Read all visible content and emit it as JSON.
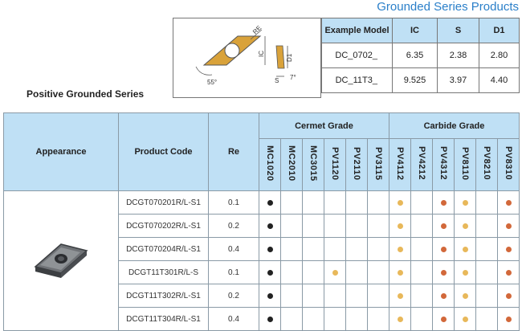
{
  "page_title": "Grounded Series Products",
  "series_label": "Positive Grounded Series",
  "diagram": {
    "label_re": "RE",
    "label_ic": "IC",
    "label_d1": "D1",
    "label_s": "S",
    "angle_55": "55°",
    "angle_7": "7°"
  },
  "spec_table": {
    "headers": [
      "Example Model",
      "IC",
      "S",
      "D1"
    ],
    "rows": [
      [
        "DC_0702_",
        "6.35",
        "2.38",
        "2.80"
      ],
      [
        "DC_11T3_",
        "9.525",
        "3.97",
        "4.40"
      ]
    ]
  },
  "grade_table": {
    "head_appearance": "Appearance",
    "head_code": "Product Code",
    "head_re": "Re",
    "group_cermet": "Cermet Grade",
    "group_carbide": "Carbide Grade",
    "cermet_grades": [
      "MC1020",
      "MC2010",
      "MC3015",
      "PV1120",
      "PV2110",
      "PV3115"
    ],
    "carbide_grades": [
      "PV4112",
      "PV4212",
      "PV4312",
      "PV8110",
      "PV8210",
      "PV8310"
    ],
    "rows": [
      {
        "code": "DCGT070201R/L-S1",
        "re": "0.1",
        "marks": [
          "k",
          "",
          "",
          "",
          "",
          "",
          "y",
          "",
          "o",
          "y",
          "",
          "o"
        ]
      },
      {
        "code": "DCGT070202R/L-S1",
        "re": "0.2",
        "marks": [
          "k",
          "",
          "",
          "",
          "",
          "",
          "y",
          "",
          "o",
          "y",
          "",
          "o"
        ]
      },
      {
        "code": "DCGT070204R/L-S1",
        "re": "0.4",
        "marks": [
          "k",
          "",
          "",
          "",
          "",
          "",
          "y",
          "",
          "o",
          "y",
          "",
          "o"
        ]
      },
      {
        "code": "DCGT11T301R/L-S",
        "re": "0.1",
        "marks": [
          "k",
          "",
          "",
          "y",
          "",
          "",
          "y",
          "",
          "o",
          "y",
          "",
          "o"
        ]
      },
      {
        "code": "DCGT11T302R/L-S1",
        "re": "0.2",
        "marks": [
          "k",
          "",
          "",
          "",
          "",
          "",
          "y",
          "",
          "o",
          "y",
          "",
          "o"
        ]
      },
      {
        "code": "DCGT11T304R/L-S1",
        "re": "0.4",
        "marks": [
          "k",
          "",
          "",
          "",
          "",
          "",
          "y",
          "",
          "o",
          "y",
          "",
          "o"
        ]
      }
    ]
  },
  "colors": {
    "header_bg": "#bfe0f5",
    "title_blue": "#2a7fc9",
    "dot_black": "#222222",
    "dot_yellow": "#e8b85a",
    "dot_orange": "#d2683a",
    "insert_gold": "#d9a23a"
  }
}
